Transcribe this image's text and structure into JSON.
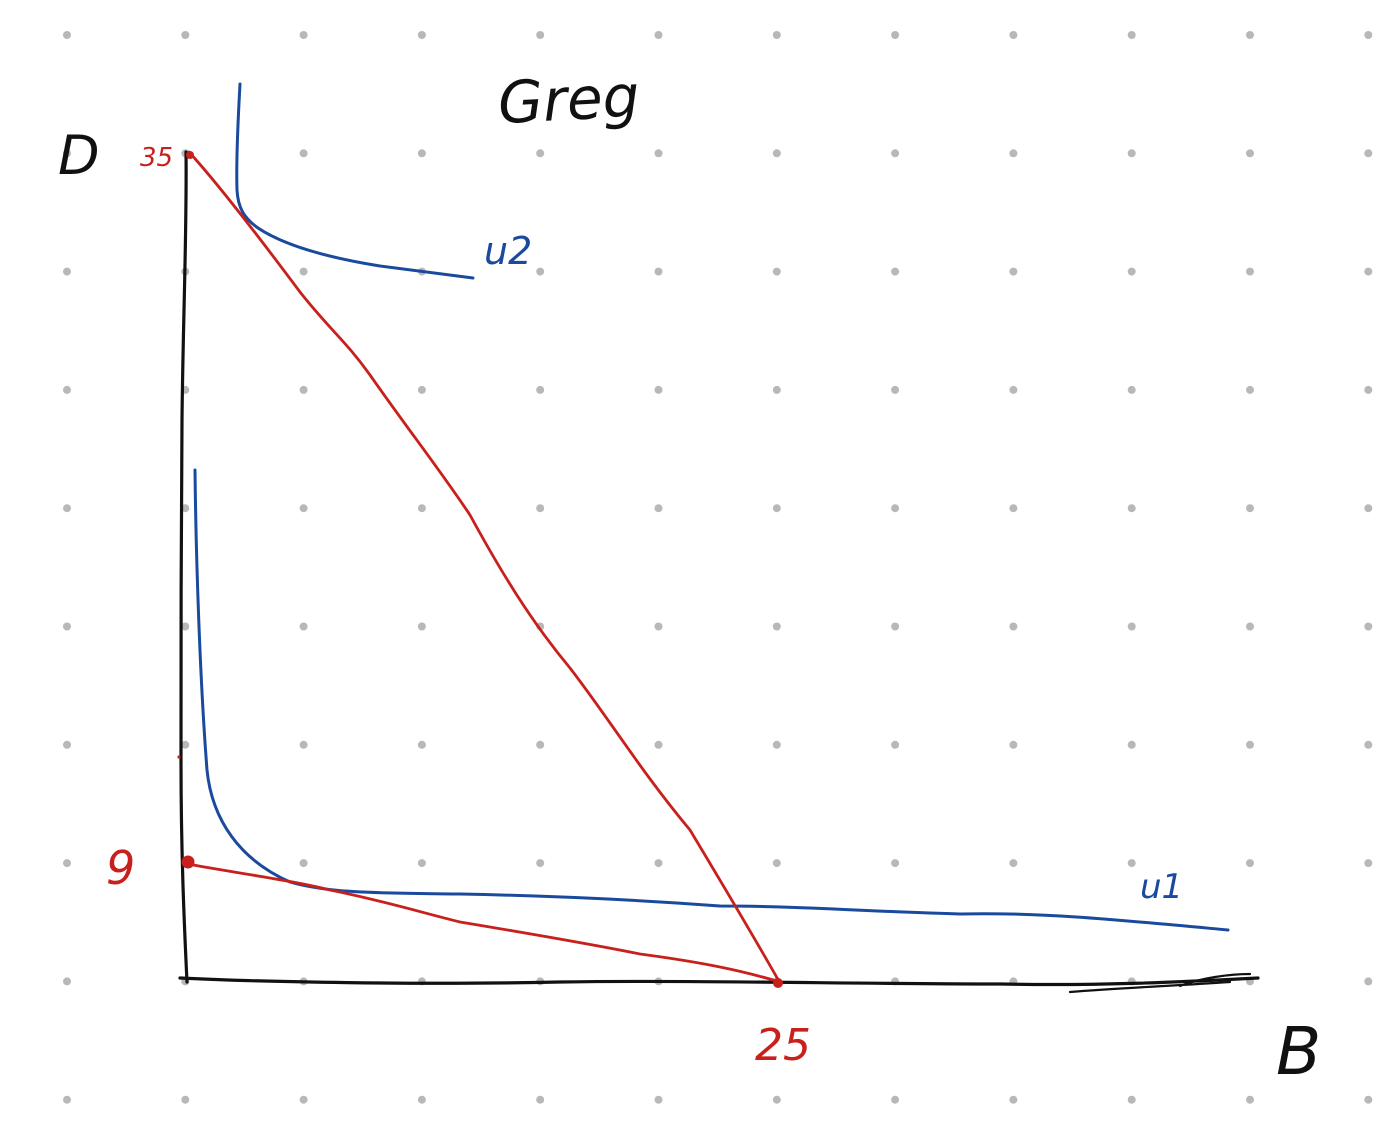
{
  "title": "Greg",
  "axes": {
    "y_label": "D",
    "x_label": "B"
  },
  "budget_lines": {
    "y_intercept_high": "35",
    "y_intercept_low": "9",
    "x_intercept": "25"
  },
  "curves": {
    "upper": "u2",
    "lower": "u1"
  },
  "colors": {
    "ink": "#111111",
    "red": "#c8201c",
    "blue": "#1a4a9e",
    "dot": "#b8b8b8"
  }
}
